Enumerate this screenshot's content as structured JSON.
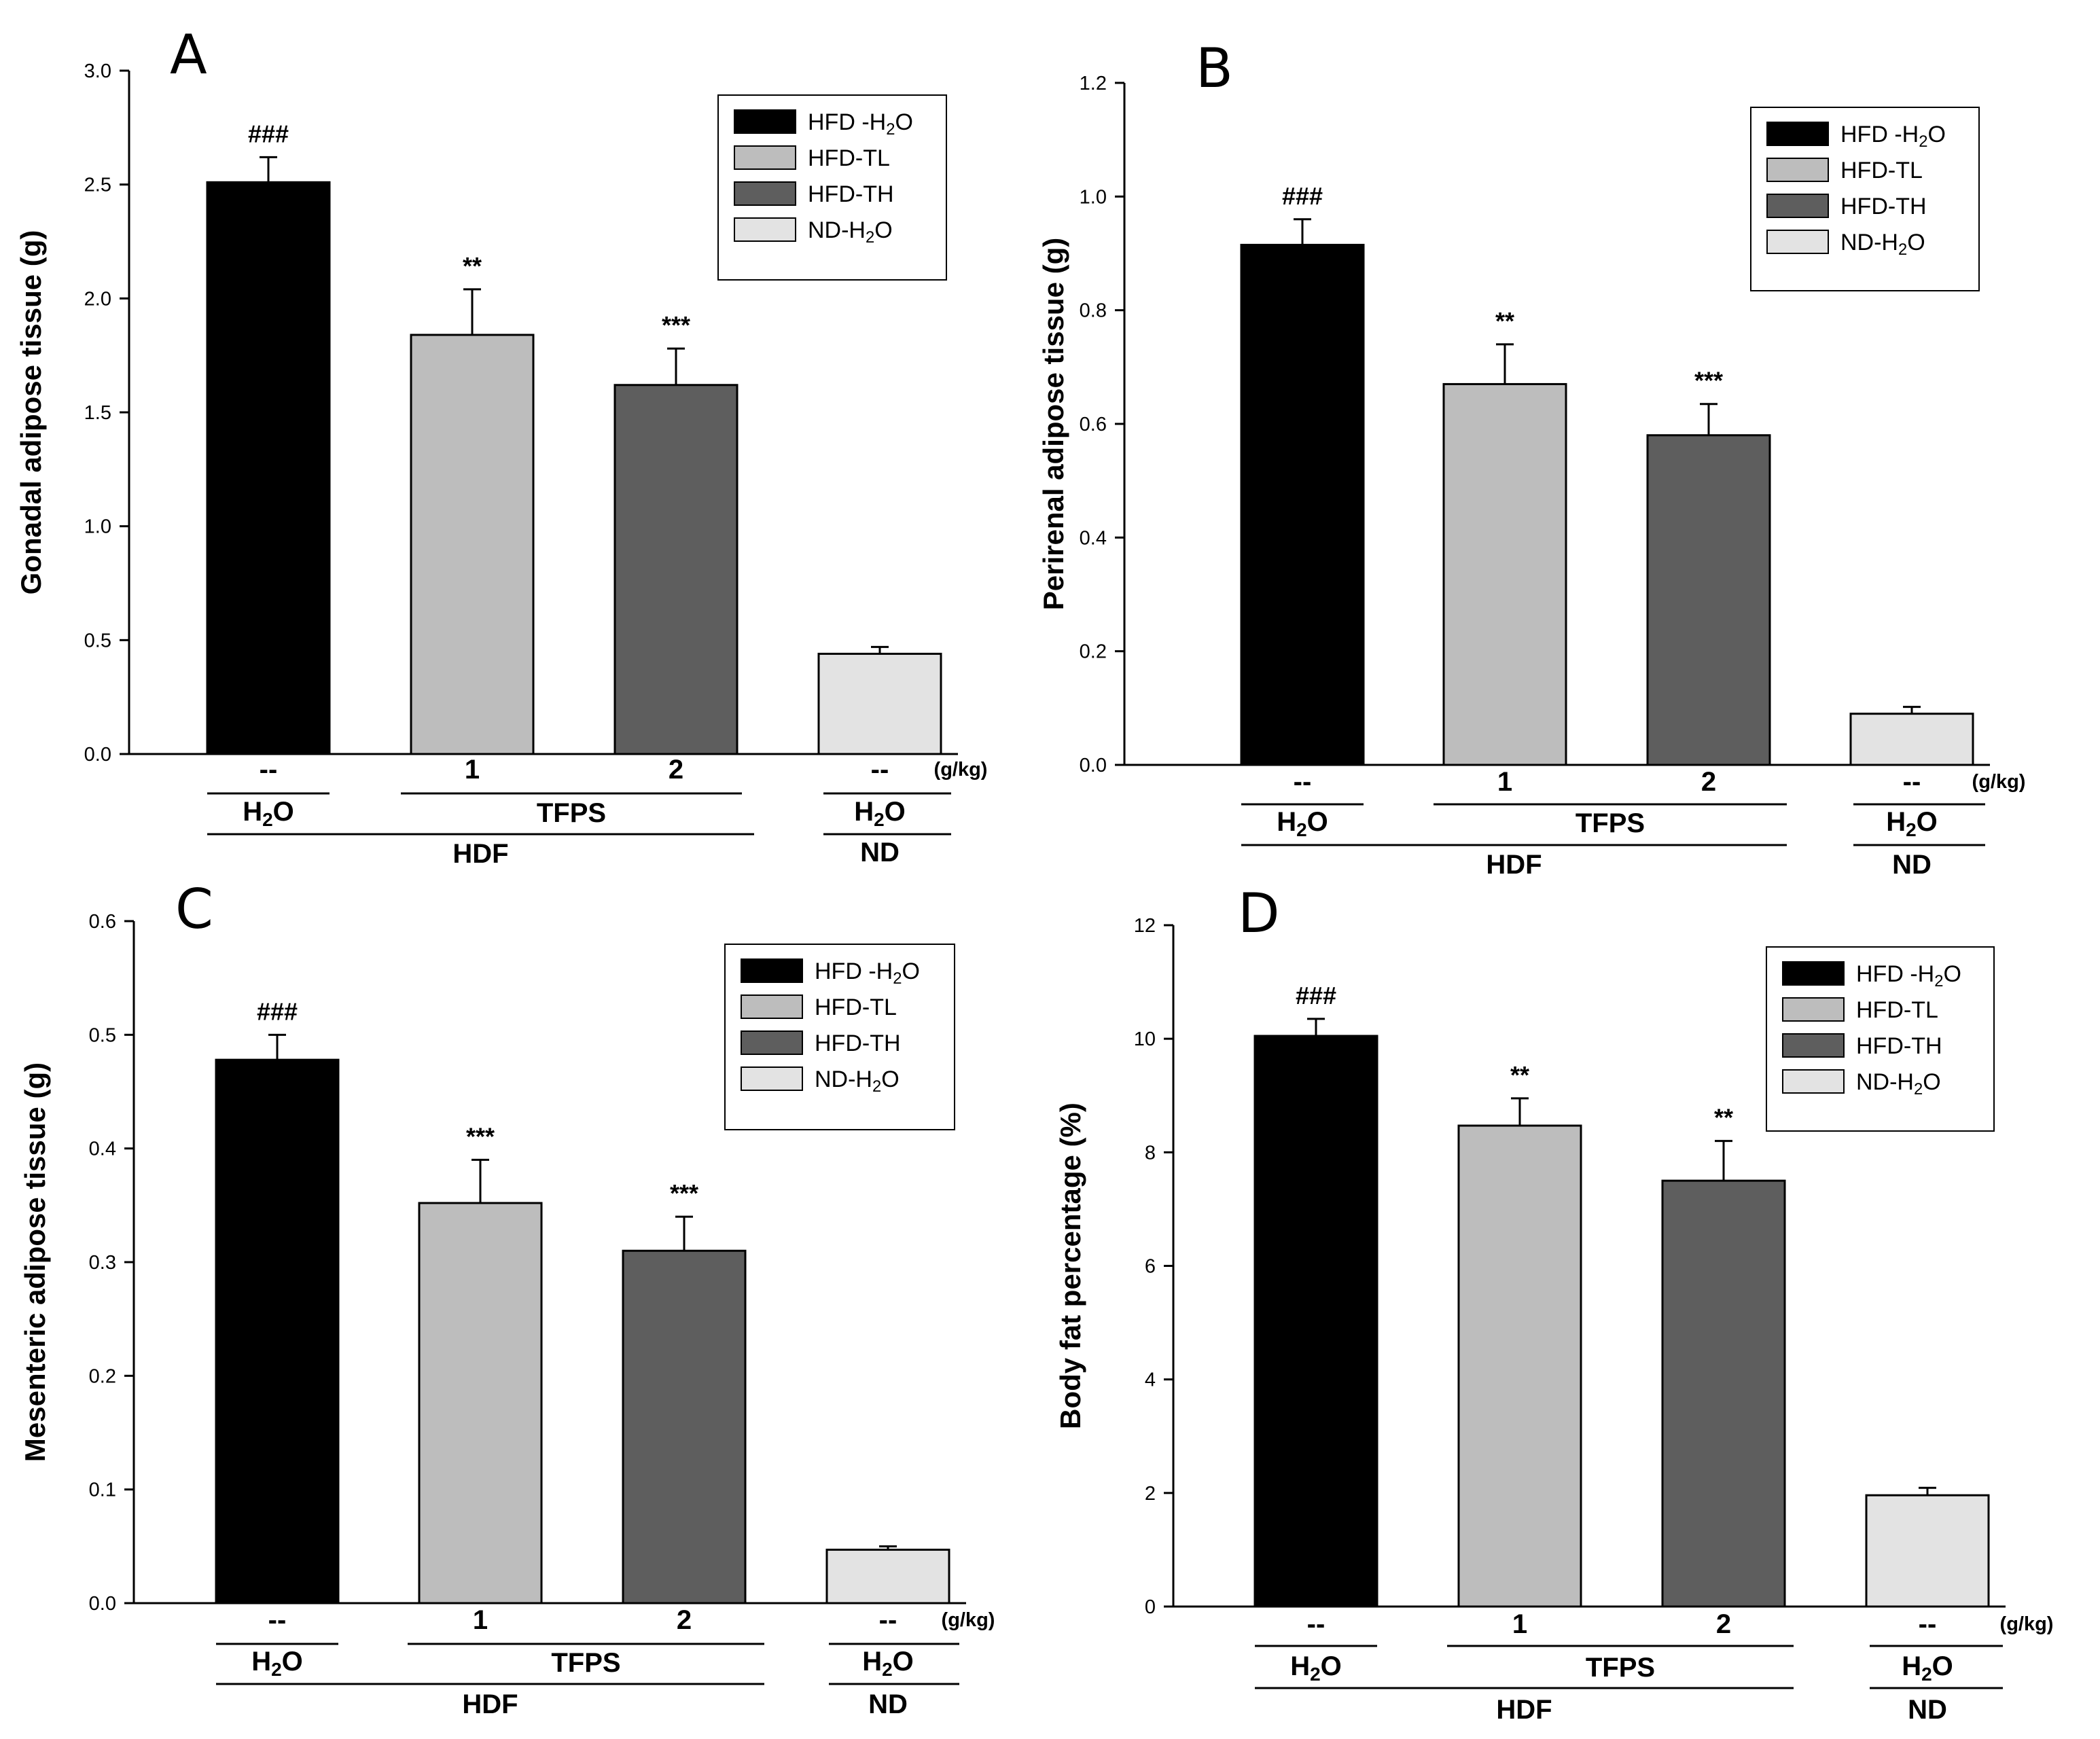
{
  "chart_data": [
    {
      "type": "bar",
      "panel_label": "A",
      "ylabel": "Gonadal adipose tissue (g)",
      "ylim": [
        0,
        3.0
      ],
      "yticks": [
        "0.0",
        "0.5",
        "1.0",
        "1.5",
        "2.0",
        "2.5",
        "3.0"
      ],
      "categories": [
        "HFD -H2O",
        "HFD-TL",
        "HFD-TH",
        "ND-H2O"
      ],
      "values": [
        2.51,
        1.84,
        1.62,
        0.44
      ],
      "errors": [
        0.11,
        0.2,
        0.16,
        0.03
      ],
      "annotations": [
        "###",
        "**",
        "***",
        ""
      ]
    },
    {
      "type": "bar",
      "panel_label": "B",
      "ylabel": "Perirenal adipose tissue (g)",
      "ylim": [
        0,
        1.2
      ],
      "yticks": [
        "0.0",
        "0.2",
        "0.4",
        "0.6",
        "0.8",
        "1.0",
        "1.2"
      ],
      "categories": [
        "HFD -H2O",
        "HFD-TL",
        "HFD-TH",
        "ND-H2O"
      ],
      "values": [
        0.915,
        0.67,
        0.58,
        0.09
      ],
      "errors": [
        0.045,
        0.07,
        0.055,
        0.012
      ],
      "annotations": [
        "###",
        "**",
        "***",
        ""
      ]
    },
    {
      "type": "bar",
      "panel_label": "C",
      "ylabel": "Mesenteric adipose tissue (g)",
      "ylim": [
        0,
        0.6
      ],
      "yticks": [
        "0.0",
        "0.1",
        "0.2",
        "0.3",
        "0.4",
        "0.5",
        "0.6"
      ],
      "categories": [
        "HFD -H2O",
        "HFD-TL",
        "HFD-TH",
        "ND-H2O"
      ],
      "values": [
        0.478,
        0.352,
        0.31,
        0.047
      ],
      "errors": [
        0.022,
        0.038,
        0.03,
        0.003
      ],
      "annotations": [
        "###",
        "***",
        "***",
        ""
      ]
    },
    {
      "type": "bar",
      "panel_label": "D",
      "ylabel": "Body fat percentage (%)",
      "ylim": [
        0,
        12
      ],
      "yticks": [
        "0",
        "2",
        "4",
        "6",
        "8",
        "10",
        "12"
      ],
      "categories": [
        "HFD -H2O",
        "HFD-TL",
        "HFD-TH",
        "ND-H2O"
      ],
      "values": [
        10.05,
        8.47,
        7.5,
        1.96
      ],
      "errors": [
        0.3,
        0.48,
        0.7,
        0.13
      ],
      "annotations": [
        "###",
        "**",
        "**",
        ""
      ]
    }
  ],
  "shared": {
    "legend": [
      {
        "pre": "HFD -H",
        "sub": "2",
        "post": "O",
        "color": "#000000"
      },
      {
        "pre": "HFD-TL",
        "sub": "",
        "post": "",
        "color": "#bdbdbd"
      },
      {
        "pre": "HFD-TH",
        "sub": "",
        "post": "",
        "color": "#5e5e5e"
      },
      {
        "pre": "ND-H",
        "sub": "2",
        "post": "O",
        "color": "#e3e3e3"
      }
    ],
    "dose_labels": [
      "--",
      "1",
      "2",
      "--"
    ],
    "dose_unit": "(g/kg)",
    "h2o": {
      "pre": "H",
      "sub": "2",
      "post": "O"
    },
    "tfps": "TFPS",
    "hdf": "HDF",
    "nd": "ND"
  }
}
